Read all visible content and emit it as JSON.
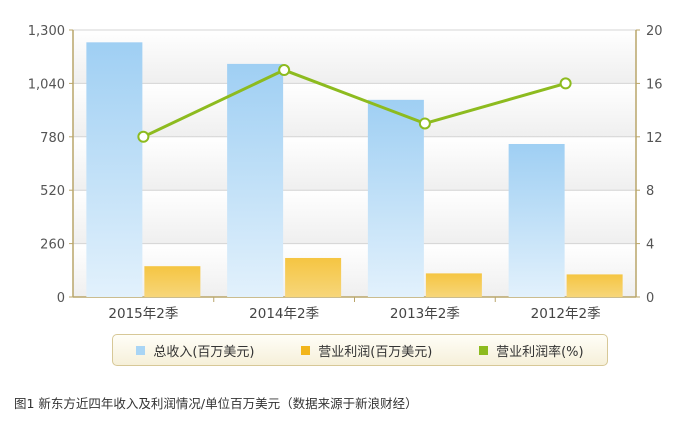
{
  "chart_data": {
    "type": "bar",
    "categories": [
      "2015年2季",
      "2014年2季",
      "2013年2季",
      "2012年2季"
    ],
    "series": [
      {
        "name": "总收入(百万美元)",
        "kind": "bar",
        "axis": "left",
        "color": "#a9d5f5",
        "values": [
          1240,
          1135,
          960,
          745
        ]
      },
      {
        "name": "营业利润(百万美元)",
        "kind": "bar",
        "axis": "left",
        "color": "#f2b51b",
        "values": [
          150,
          190,
          115,
          110
        ]
      },
      {
        "name": "营业利润率(%)",
        "kind": "line",
        "axis": "right",
        "color": "#8dbb1f",
        "values": [
          12,
          17,
          13,
          16
        ]
      }
    ],
    "y_left": {
      "lim": [
        0,
        1300
      ],
      "ticks": [
        "0",
        "260",
        "520",
        "780",
        "1,040",
        "1,300"
      ],
      "tick_values": [
        0,
        260,
        520,
        780,
        1040,
        1300
      ]
    },
    "y_right": {
      "lim": [
        0,
        20
      ],
      "ticks": [
        "0",
        "4",
        "8",
        "12",
        "16",
        "20"
      ],
      "tick_values": [
        0,
        4,
        8,
        12,
        16,
        20
      ]
    },
    "grid": true,
    "legend_position": "bottom"
  },
  "caption": "图1 新东方近四年收入及利润情况/单位百万美元（数据来源于新浪财经）"
}
